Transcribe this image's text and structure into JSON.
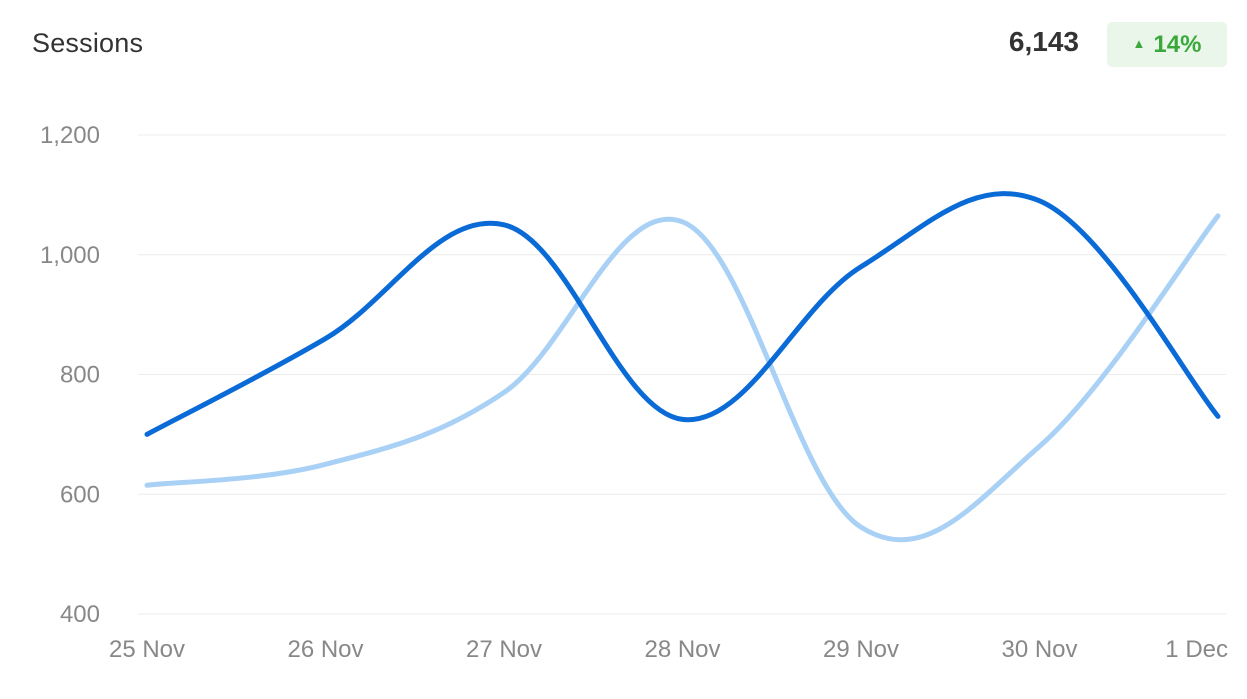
{
  "header": {
    "title": "Sessions",
    "total": "6,143",
    "change": "14%",
    "change_icon": "arrow-up-icon"
  },
  "colors": {
    "current_series": "#0a6bd7",
    "previous_series": "#a9d0f5",
    "gridline": "#ececec",
    "change_positive": "#3aa83a",
    "change_badge_bg": "#eaf6ea"
  },
  "chart_data": {
    "type": "line",
    "title": "Sessions",
    "x": [
      "25 Nov",
      "26 Nov",
      "27 Nov",
      "28 Nov",
      "29 Nov",
      "30 Nov",
      "1 Dec"
    ],
    "y_ticks": [
      "1,200",
      "1,000",
      "800",
      "600",
      "400"
    ],
    "ylim": [
      400,
      1200
    ],
    "grid": true,
    "legend": "none",
    "series": [
      {
        "values": [
          700,
          860,
          1050,
          725,
          980,
          1090,
          730
        ]
      },
      {
        "values": [
          615,
          650,
          770,
          1055,
          545,
          680,
          1065
        ]
      }
    ]
  }
}
